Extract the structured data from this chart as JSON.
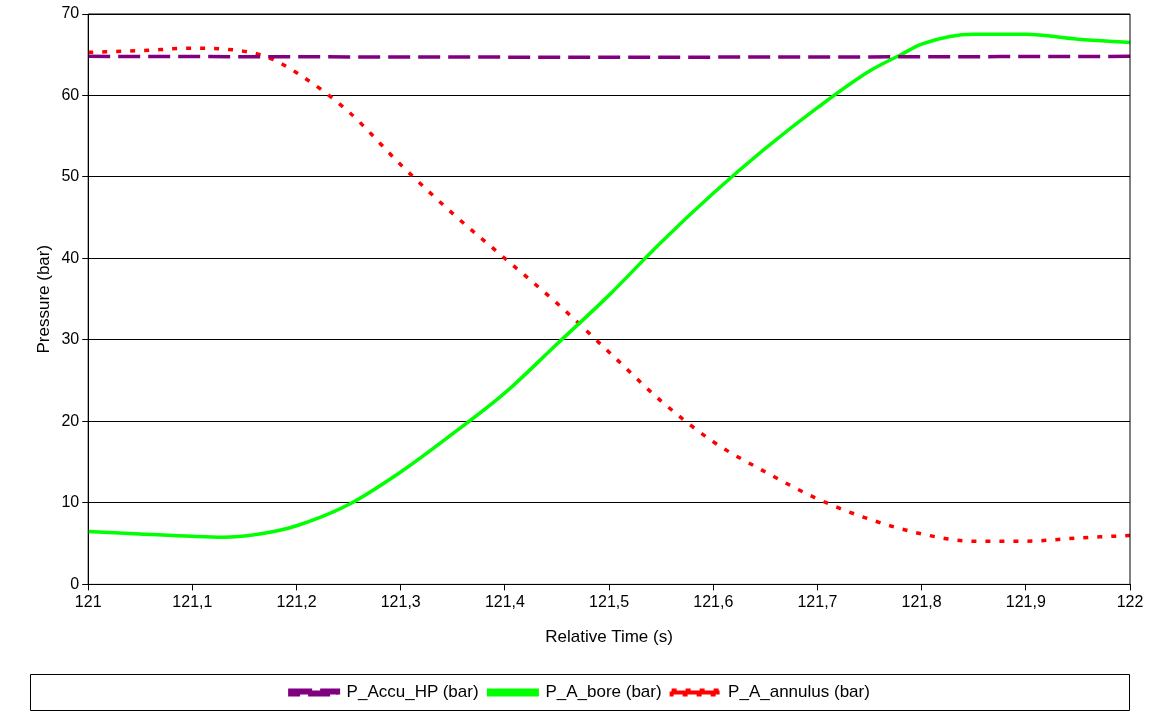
{
  "chart_data": {
    "type": "line",
    "xlabel": "Relative Time (s)",
    "ylabel": "Pressure (bar)",
    "xlim": [
      121,
      122
    ],
    "ylim": [
      0,
      70
    ],
    "xticks": [
      121,
      {
        "value": 121.1,
        "label": "121,1"
      },
      {
        "value": 121.2,
        "label": "121,2"
      },
      {
        "value": 121.3,
        "label": "121,3"
      },
      {
        "value": 121.4,
        "label": "121,4"
      },
      {
        "value": 121.5,
        "label": "121,5"
      },
      {
        "value": 121.6,
        "label": "121,6"
      },
      {
        "value": 121.7,
        "label": "121,7"
      },
      {
        "value": 121.8,
        "label": "121,8"
      },
      {
        "value": 121.9,
        "label": "121,9"
      },
      122
    ],
    "yticks": [
      0,
      10,
      20,
      30,
      40,
      50,
      60,
      70
    ],
    "grid": "y",
    "legend": "bottom",
    "marker": "none",
    "series": [
      {
        "name": "P_Accu_HP (bar)",
        "color": "#800080",
        "line_style": "dashed",
        "x": [
          121,
          121.5,
          122
        ],
        "values": [
          64.8,
          64.7,
          64.8
        ]
      },
      {
        "name": "P_A_bore (bar)",
        "color": "#00ff00",
        "line_style": "solid",
        "x": [
          121,
          121.05,
          121.1,
          121.13,
          121.17,
          121.2,
          121.25,
          121.3,
          121.35,
          121.4,
          121.45,
          121.5,
          121.55,
          121.6,
          121.65,
          121.7,
          121.75,
          121.78,
          121.8,
          121.85,
          121.9,
          121.95,
          122
        ],
        "values": [
          6.5,
          6.2,
          5.9,
          5.8,
          6.3,
          7.2,
          9.8,
          13.8,
          18.5,
          23.5,
          29.5,
          35.5,
          42,
          48,
          53.5,
          58.5,
          63,
          65,
          66.3,
          67.5,
          67.5,
          66.9,
          66.5
        ]
      },
      {
        "name": "P_A_annulus (bar)",
        "color": "#ff0000",
        "line_style": "dotted",
        "x": [
          121,
          121.05,
          121.1,
          121.13,
          121.17,
          121.2,
          121.25,
          121.3,
          121.35,
          121.4,
          121.45,
          121.5,
          121.55,
          121.6,
          121.65,
          121.7,
          121.75,
          121.8,
          121.85,
          121.9,
          121.95,
          122
        ],
        "values": [
          65.3,
          65.5,
          65.8,
          65.7,
          64.8,
          62.8,
          58,
          51.5,
          45.5,
          40,
          34.5,
          28.5,
          22.5,
          17.5,
          13.8,
          10.5,
          8,
          6.2,
          5.3,
          5.3,
          5.7,
          6
        ]
      }
    ]
  }
}
